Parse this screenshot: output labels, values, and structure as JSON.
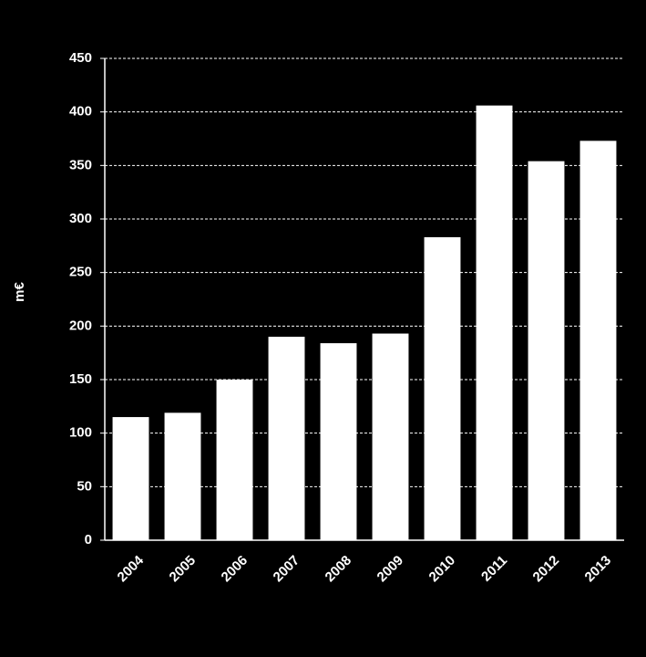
{
  "chart_data": {
    "type": "bar",
    "y_label": "m€",
    "categories": [
      "2004",
      "2005",
      "2006",
      "2007",
      "2008",
      "2009",
      "2010",
      "2011",
      "2012",
      "2013"
    ],
    "values": [
      115,
      119,
      150,
      190,
      184,
      193,
      283,
      406,
      354,
      373
    ],
    "color": "#ffffff",
    "ylim": [
      0,
      450
    ],
    "yticks": [
      0,
      50,
      100,
      150,
      200,
      250,
      300,
      350,
      400,
      450
    ],
    "grid": true
  }
}
